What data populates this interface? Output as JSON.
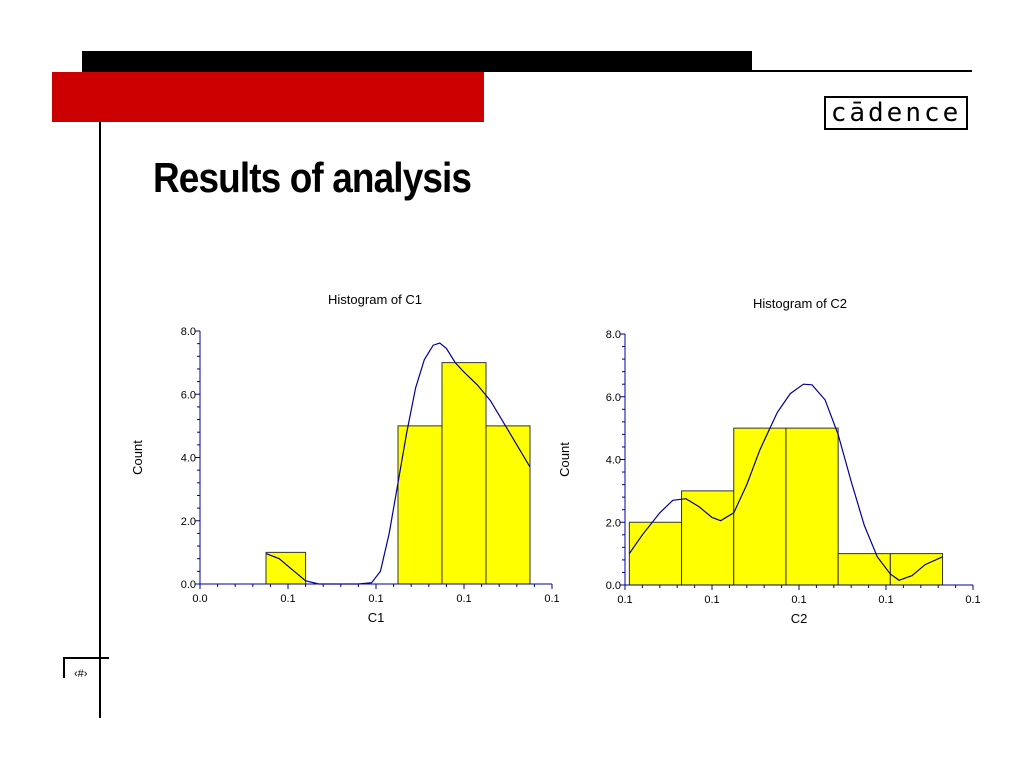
{
  "slide": {
    "title": "Results of analysis",
    "logo_text": "cādence",
    "slide_number": "‹#›"
  },
  "colors": {
    "accent_red": "#cc0000",
    "bar_fill": "#ffff00",
    "curve": "#000099"
  },
  "chart_data": [
    {
      "type": "bar",
      "title": "Histogram of  C1",
      "xlabel": "C1",
      "ylabel": "Count",
      "ylim": [
        0,
        8
      ],
      "xlim": [
        0,
        8
      ],
      "yticks": [
        "0.0",
        "2.0",
        "4.0",
        "6.0",
        "8.0"
      ],
      "xticks": [
        "0.0",
        "0.1",
        "0.1",
        "0.1",
        "0.1"
      ],
      "bins": [
        [
          1.5,
          2.4
        ],
        [
          4.5,
          5.5
        ],
        [
          5.5,
          6.5
        ],
        [
          6.5,
          7.5
        ]
      ],
      "values": [
        1,
        5,
        7,
        5
      ],
      "density_curve": [
        [
          1.5,
          0.96
        ],
        [
          1.8,
          0.8
        ],
        [
          2.1,
          0.45
        ],
        [
          2.4,
          0.1
        ],
        [
          2.7,
          0
        ],
        [
          3,
          0
        ],
        [
          3.3,
          0
        ],
        [
          3.6,
          0
        ],
        [
          3.9,
          0.04
        ],
        [
          4.1,
          0.4
        ],
        [
          4.3,
          1.6
        ],
        [
          4.5,
          3.2
        ],
        [
          4.7,
          4.8
        ],
        [
          4.9,
          6.2
        ],
        [
          5.1,
          7.1
        ],
        [
          5.3,
          7.55
        ],
        [
          5.45,
          7.62
        ],
        [
          5.6,
          7.45
        ],
        [
          5.8,
          7.0
        ],
        [
          6.0,
          6.7
        ],
        [
          6.3,
          6.3
        ],
        [
          6.6,
          5.8
        ],
        [
          6.9,
          5.1
        ],
        [
          7.2,
          4.4
        ],
        [
          7.5,
          3.7
        ]
      ]
    },
    {
      "type": "bar",
      "title": "Histogram of  C2",
      "xlabel": "C2",
      "ylabel": "Count",
      "ylim": [
        0,
        8
      ],
      "xlim": [
        0,
        8
      ],
      "yticks": [
        "0.0",
        "2.0",
        "4.0",
        "6.0",
        "8.0"
      ],
      "xticks": [
        "0.1",
        "0.1",
        "0.1",
        "0.1",
        "0.1"
      ],
      "bins": [
        [
          0.1,
          1.3
        ],
        [
          1.3,
          2.5
        ],
        [
          2.5,
          3.7
        ],
        [
          3.7,
          4.9
        ],
        [
          4.9,
          6.1
        ],
        [
          6.1,
          7.3
        ]
      ],
      "values": [
        2,
        3,
        5,
        5,
        1,
        1
      ],
      "density_curve": [
        [
          0.1,
          1.0
        ],
        [
          0.4,
          1.6
        ],
        [
          0.8,
          2.3
        ],
        [
          1.1,
          2.7
        ],
        [
          1.4,
          2.75
        ],
        [
          1.7,
          2.5
        ],
        [
          2.0,
          2.15
        ],
        [
          2.2,
          2.05
        ],
        [
          2.5,
          2.3
        ],
        [
          2.8,
          3.2
        ],
        [
          3.1,
          4.3
        ],
        [
          3.5,
          5.5
        ],
        [
          3.8,
          6.1
        ],
        [
          4.1,
          6.4
        ],
        [
          4.3,
          6.38
        ],
        [
          4.6,
          5.9
        ],
        [
          4.9,
          4.8
        ],
        [
          5.2,
          3.3
        ],
        [
          5.5,
          1.9
        ],
        [
          5.8,
          0.9
        ],
        [
          6.1,
          0.35
        ],
        [
          6.3,
          0.15
        ],
        [
          6.6,
          0.3
        ],
        [
          6.9,
          0.65
        ],
        [
          7.3,
          0.9
        ]
      ]
    }
  ]
}
